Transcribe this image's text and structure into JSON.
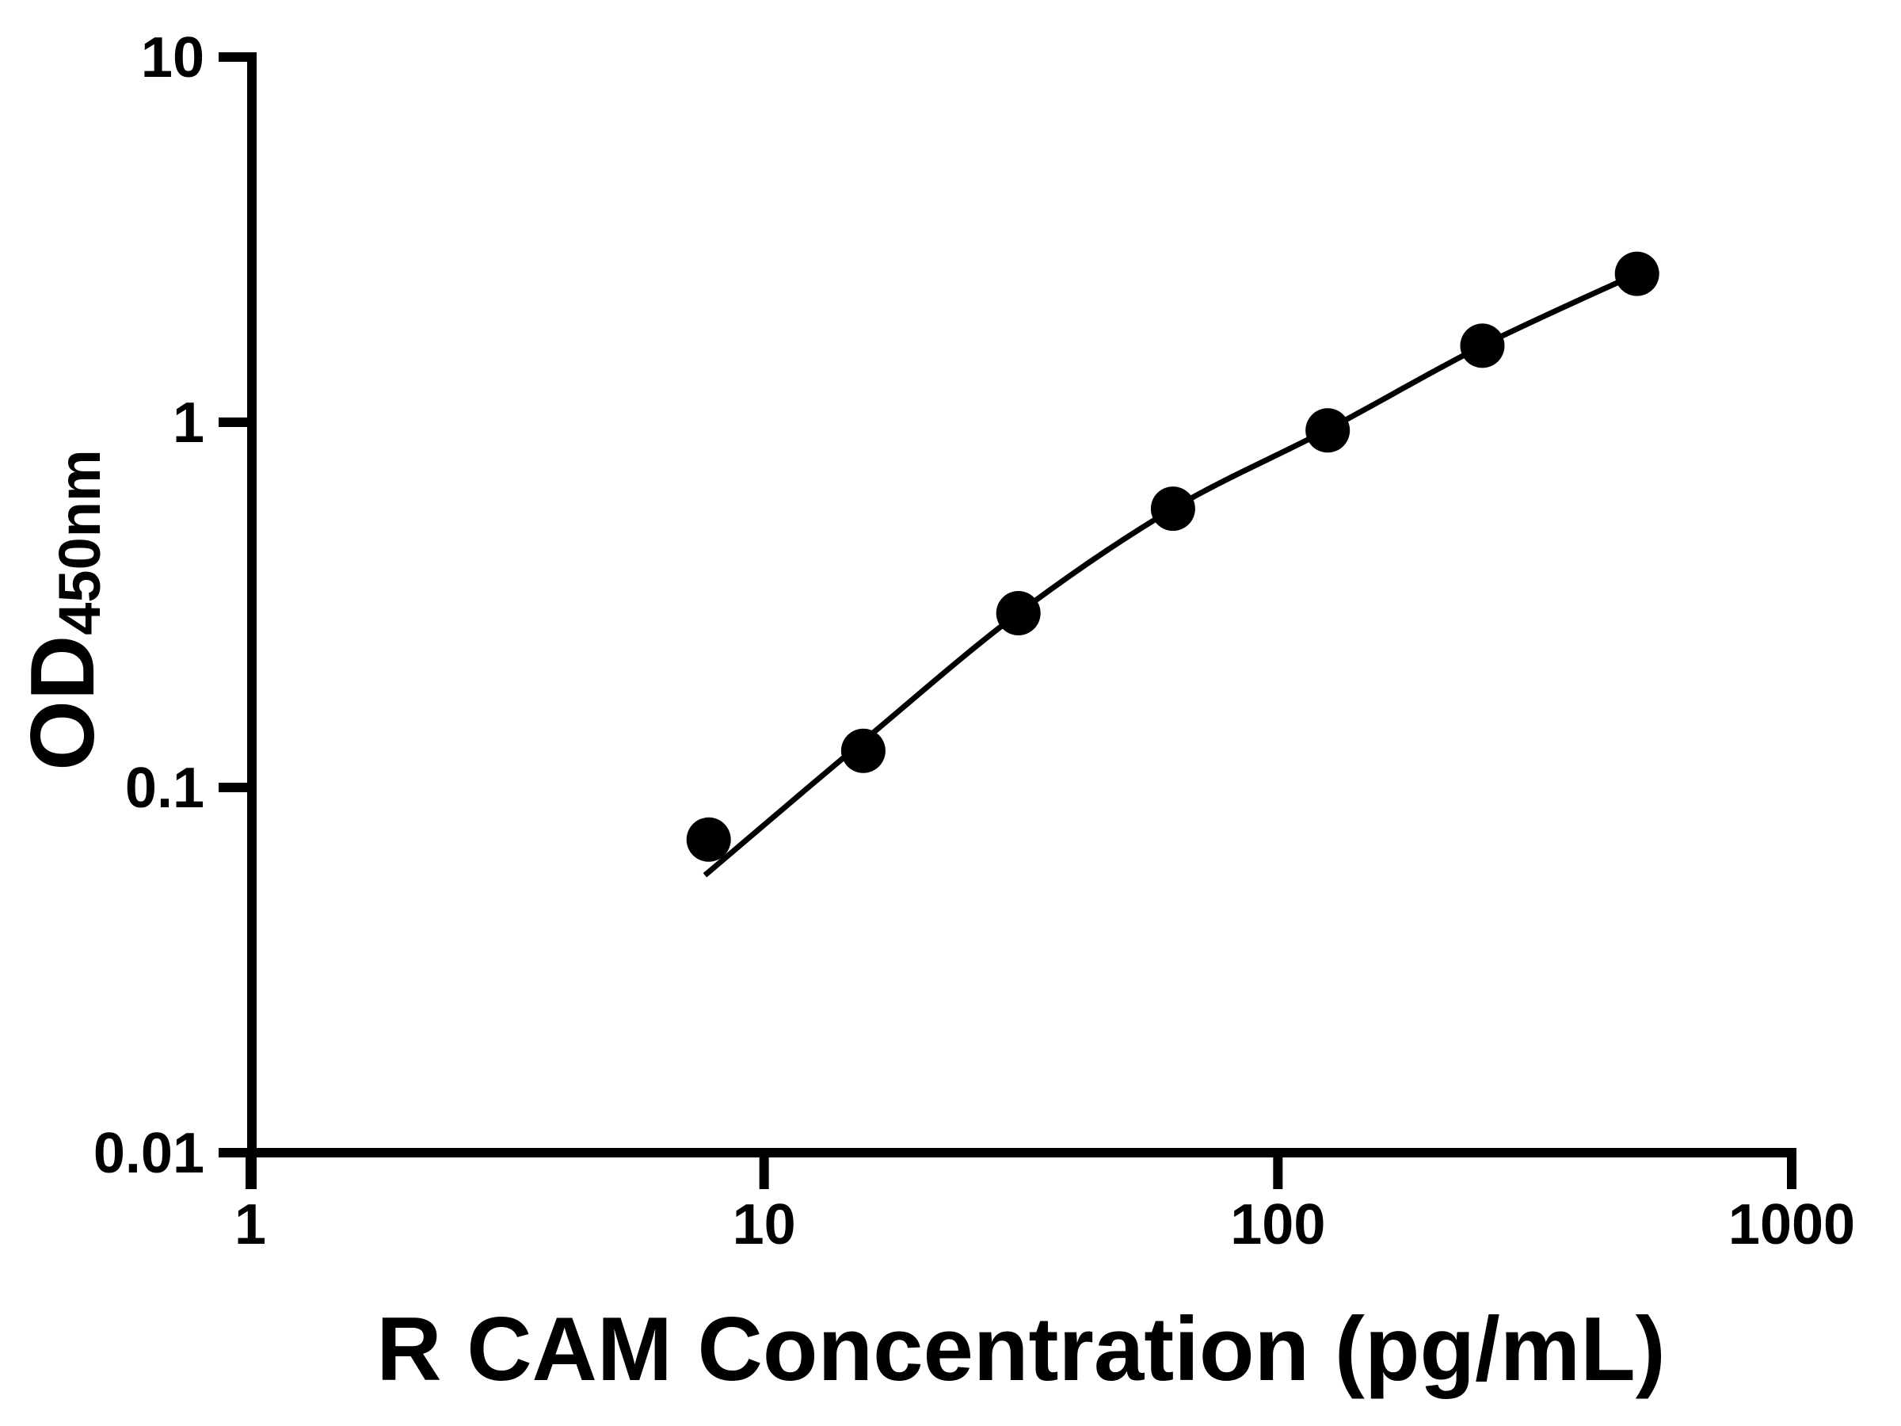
{
  "figure": {
    "background_color": "#ffffff",
    "foreground_color": "#000000"
  },
  "chart_data": {
    "type": "scatter",
    "title": "",
    "xlabel": "R CAM Concentration (pg/mL)",
    "ylabel": "OD",
    "ylabel_subscript": "450nm",
    "x_scale": "log10",
    "y_scale": "log10",
    "xlim": [
      1,
      1000
    ],
    "ylim": [
      0.01,
      10
    ],
    "grid": false,
    "legend_position": "none",
    "x_ticks": [
      {
        "value": 1,
        "label": "1"
      },
      {
        "value": 10,
        "label": "10"
      },
      {
        "value": 100,
        "label": "100"
      },
      {
        "value": 1000,
        "label": "1000"
      }
    ],
    "y_ticks": [
      {
        "value": 10,
        "label": "10"
      },
      {
        "value": 1,
        "label": "1"
      },
      {
        "value": 0.1,
        "label": "0.1"
      },
      {
        "value": 0.01,
        "label": "0.01"
      }
    ],
    "series": [
      {
        "name": "standard-points",
        "type": "scatter",
        "marker": "circle",
        "color": "#000000",
        "x": [
          7.8,
          15.6,
          31.25,
          62.5,
          125,
          250,
          500
        ],
        "od": [
          0.072,
          0.126,
          0.3,
          0.58,
          0.95,
          1.62,
          2.55
        ]
      },
      {
        "name": "fitted-curve",
        "type": "line",
        "color": "#000000",
        "x": [
          7.67,
          15.6,
          31.25,
          62.5,
          125,
          250,
          500
        ],
        "od": [
          0.0575,
          0.134,
          0.3,
          0.58,
          0.955,
          1.62,
          2.55
        ]
      }
    ]
  }
}
